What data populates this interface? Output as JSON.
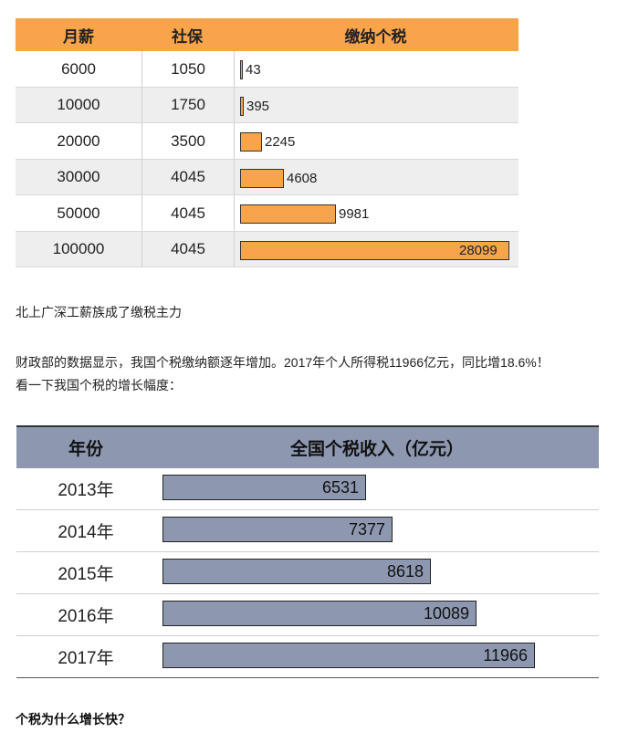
{
  "chart_data": [
    {
      "type": "table",
      "columns": [
        "月薪",
        "社保",
        "缴纳个税"
      ],
      "rows": [
        {
          "salary": "6000",
          "social": "1050",
          "tax": 43
        },
        {
          "salary": "10000",
          "social": "1750",
          "tax": 395
        },
        {
          "salary": "20000",
          "social": "3500",
          "tax": 2245
        },
        {
          "salary": "30000",
          "social": "4045",
          "tax": 4608
        },
        {
          "salary": "50000",
          "social": "4045",
          "tax": 9981
        },
        {
          "salary": "100000",
          "social": "4045",
          "tax": 28099
        }
      ],
      "bar_max": 28099,
      "bar_color": "#f7a44a"
    },
    {
      "type": "table",
      "columns": [
        "年份",
        "全国个税收入（亿元）"
      ],
      "rows": [
        {
          "year": "2013年",
          "value": 6531
        },
        {
          "year": "2014年",
          "value": 7377
        },
        {
          "year": "2015年",
          "value": 8618
        },
        {
          "year": "2016年",
          "value": 10089
        },
        {
          "year": "2017年",
          "value": 11966
        }
      ],
      "bar_max": 11966,
      "bar_color": "#8d98b0"
    }
  ],
  "text": {
    "line1": "北上广深工薪族成了缴税主力",
    "line2": "财政部的数据显示，我国个税缴纳额逐年增加。2017年个人所得税11966亿元，同比增18.6%！",
    "line3": "看一下我国个税的增长幅度：",
    "heading": "个税为什么增长快？"
  }
}
